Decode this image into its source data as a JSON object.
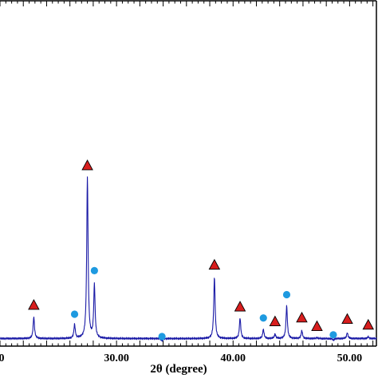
{
  "chart_data": {
    "type": "line",
    "xlabel": "2θ (degree)",
    "ylabel": "",
    "xlim": [
      20.0,
      52.3
    ],
    "ylim": [
      0,
      1000
    ],
    "grid": false,
    "x_tick_labels": [
      {
        "x": 30,
        "label": "30.00"
      },
      {
        "x": 40,
        "label": "40.00"
      },
      {
        "x": 50,
        "label": "50.00"
      }
    ],
    "edge_label": {
      "x": 20,
      "label": "0"
    },
    "series": [
      {
        "color": "#1a1aa6",
        "baseline": 15,
        "peaks": [
          {
            "x": 22.9,
            "y": 78
          },
          {
            "x": 26.4,
            "y": 55
          },
          {
            "x": 27.5,
            "y": 485
          },
          {
            "x": 28.1,
            "y": 170
          },
          {
            "x": 33.9,
            "y": 8
          },
          {
            "x": 38.4,
            "y": 195
          },
          {
            "x": 40.6,
            "y": 75
          },
          {
            "x": 42.6,
            "y": 42
          },
          {
            "x": 43.6,
            "y": 28
          },
          {
            "x": 44.6,
            "y": 110
          },
          {
            "x": 45.9,
            "y": 38
          },
          {
            "x": 47.2,
            "y": 18
          },
          {
            "x": 48.6,
            "y": 10
          },
          {
            "x": 49.8,
            "y": 32
          },
          {
            "x": 51.6,
            "y": 20
          }
        ]
      }
    ],
    "markers": [
      {
        "shape": "triangle",
        "color": "#d81e1e",
        "x": 22.9,
        "y": 113
      },
      {
        "shape": "circle",
        "color": "#1e9ae0",
        "x": 26.4,
        "y": 86
      },
      {
        "shape": "triangle",
        "color": "#d81e1e",
        "x": 27.5,
        "y": 520
      },
      {
        "shape": "circle",
        "color": "#1e9ae0",
        "x": 28.1,
        "y": 213
      },
      {
        "shape": "circle",
        "color": "#1e9ae0",
        "x": 33.9,
        "y": 21
      },
      {
        "shape": "triangle",
        "color": "#d81e1e",
        "x": 38.4,
        "y": 230
      },
      {
        "shape": "triangle",
        "color": "#d81e1e",
        "x": 40.6,
        "y": 108
      },
      {
        "shape": "circle",
        "color": "#1e9ae0",
        "x": 42.6,
        "y": 75
      },
      {
        "shape": "triangle",
        "color": "#d81e1e",
        "x": 43.6,
        "y": 65
      },
      {
        "shape": "circle",
        "color": "#1e9ae0",
        "x": 44.6,
        "y": 143
      },
      {
        "shape": "triangle",
        "color": "#d81e1e",
        "x": 45.9,
        "y": 76
      },
      {
        "shape": "triangle",
        "color": "#d81e1e",
        "x": 47.2,
        "y": 51
      },
      {
        "shape": "circle",
        "color": "#1e9ae0",
        "x": 48.6,
        "y": 26
      },
      {
        "shape": "triangle",
        "color": "#d81e1e",
        "x": 49.8,
        "y": 72
      },
      {
        "shape": "triangle",
        "color": "#d81e1e",
        "x": 51.6,
        "y": 55
      }
    ]
  }
}
